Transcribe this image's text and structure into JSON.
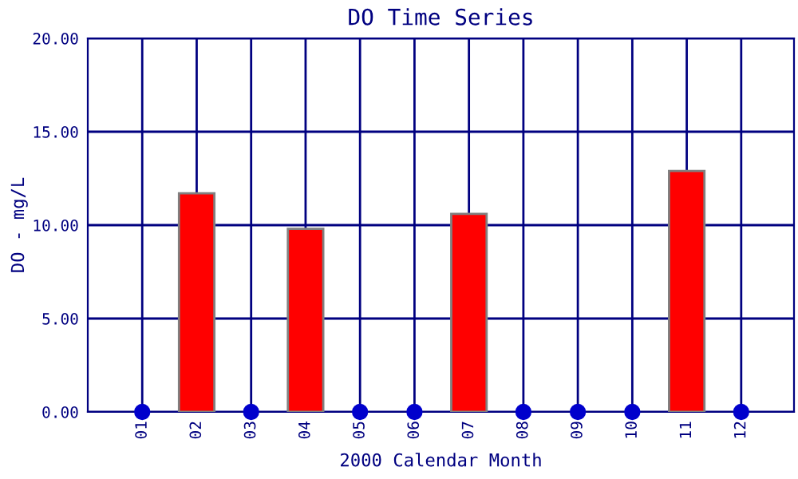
{
  "chart_data": {
    "type": "bar",
    "title": "DO Time Series",
    "xlabel": "2000 Calendar Month",
    "ylabel": "DO - mg/L",
    "categories": [
      "01",
      "02",
      "03",
      "04",
      "05",
      "06",
      "07",
      "08",
      "09",
      "10",
      "11",
      "12"
    ],
    "series": [
      {
        "color": "#ff0000",
        "values": [
          null,
          11.7,
          null,
          9.8,
          null,
          null,
          10.6,
          null,
          null,
          null,
          12.9,
          null
        ]
      },
      {
        "type": "scatter",
        "color": "#0000cc",
        "values": [
          0,
          null,
          0,
          null,
          0,
          0,
          null,
          0,
          0,
          0,
          null,
          0
        ]
      }
    ],
    "ylim": [
      0,
      20
    ],
    "yticks": [
      {
        "value": 0,
        "label": "0.00"
      },
      {
        "value": 5,
        "label": "5.00"
      },
      {
        "value": 10,
        "label": "10.00"
      },
      {
        "value": 15,
        "label": "15.00"
      },
      {
        "value": 20,
        "label": "20.00"
      }
    ],
    "grid": true,
    "marker": "circle"
  }
}
